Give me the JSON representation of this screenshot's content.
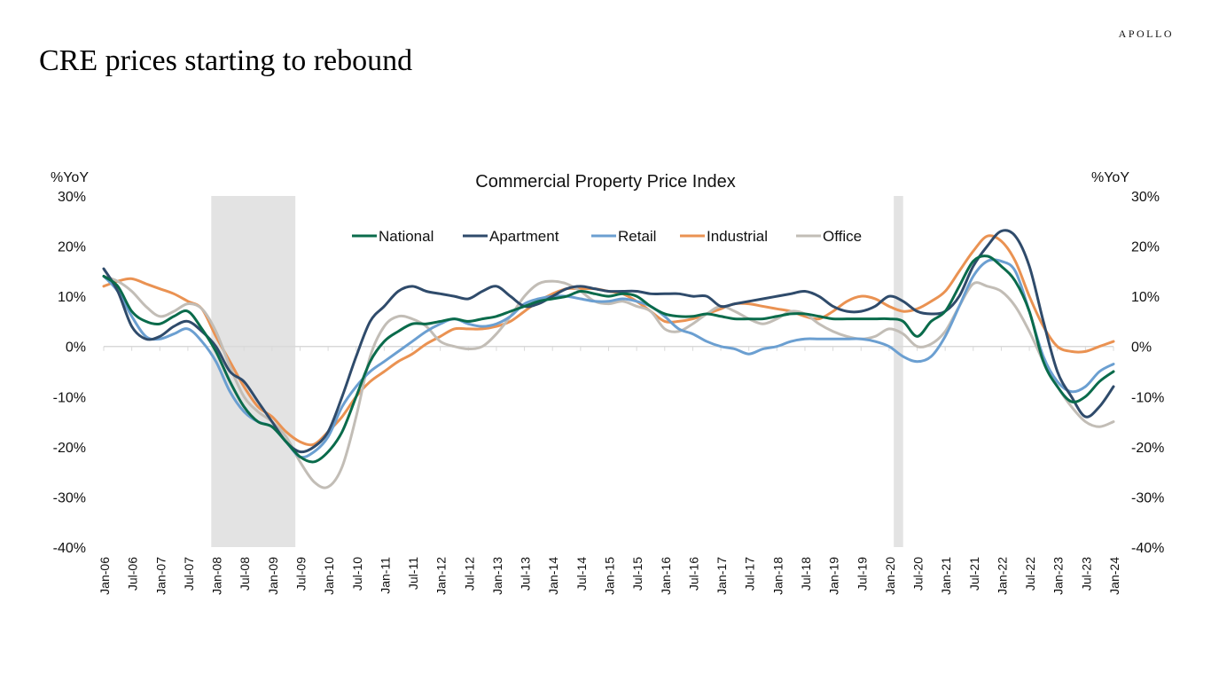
{
  "brand": "APOLLO",
  "page_title": "CRE prices starting to rebound",
  "colors": {
    "National": "#0a6b4b",
    "Apartment": "#2f4b6b",
    "Retail": "#6b9fd1",
    "Industrial": "#ea9252",
    "Office": "#c2bdb6",
    "recession": "#e3e3e3",
    "axis": "#d9d9d9"
  },
  "chart_data": {
    "type": "line",
    "title": "Commercial Property Price Index",
    "ylabel_left": "%YoY",
    "ylabel_right": "%YoY",
    "ylim": [
      -40,
      30
    ],
    "y_ticks": [
      -40,
      -30,
      -20,
      -10,
      0,
      10,
      20,
      30
    ],
    "y_tick_labels": [
      "-40%",
      "-30%",
      "-20%",
      "-10%",
      "0%",
      "10%",
      "20%",
      "30%"
    ],
    "x_start": "Jan-06",
    "x_end": "Jan-24",
    "x_tick_labels": [
      "Jan-06",
      "Jul-06",
      "Jan-07",
      "Jul-07",
      "Jan-08",
      "Jul-08",
      "Jan-09",
      "Jul-09",
      "Jan-10",
      "Jul-10",
      "Jan-11",
      "Jul-11",
      "Jan-12",
      "Jul-12",
      "Jan-13",
      "Jul-13",
      "Jan-14",
      "Jul-14",
      "Jan-15",
      "Jul-15",
      "Jan-16",
      "Jul-16",
      "Jan-17",
      "Jul-17",
      "Jan-18",
      "Jul-18",
      "Jan-19",
      "Jul-19",
      "Jan-20",
      "Jul-20",
      "Jan-21",
      "Jul-21",
      "Jan-22",
      "Jul-22",
      "Jan-23",
      "Jul-23",
      "Jan-24"
    ],
    "legend_position": "top-center",
    "grid": false,
    "recession_shading": [
      {
        "start": "Dec-07",
        "end": "Jun-09"
      },
      {
        "start": "Feb-20",
        "end": "Apr-20"
      }
    ],
    "series": [
      {
        "name": "National",
        "x": [
          "Jan-06",
          "Apr-06",
          "Jul-06",
          "Oct-06",
          "Jan-07",
          "Apr-07",
          "Jul-07",
          "Oct-07",
          "Jan-08",
          "Apr-08",
          "Jul-08",
          "Oct-08",
          "Jan-09",
          "Apr-09",
          "Jul-09",
          "Oct-09",
          "Jan-10",
          "Apr-10",
          "Jul-10",
          "Oct-10",
          "Jan-11",
          "Apr-11",
          "Jul-11",
          "Oct-11",
          "Jan-12",
          "Apr-12",
          "Jul-12",
          "Oct-12",
          "Jan-13",
          "Apr-13",
          "Jul-13",
          "Oct-13",
          "Jan-14",
          "Apr-14",
          "Jul-14",
          "Oct-14",
          "Jan-15",
          "Apr-15",
          "Jul-15",
          "Oct-15",
          "Jan-16",
          "Apr-16",
          "Jul-16",
          "Oct-16",
          "Jan-17",
          "Apr-17",
          "Jul-17",
          "Oct-17",
          "Jan-18",
          "Apr-18",
          "Jul-18",
          "Oct-18",
          "Jan-19",
          "Apr-19",
          "Jul-19",
          "Oct-19",
          "Jan-20",
          "Apr-20",
          "Jul-20",
          "Oct-20",
          "Jan-21",
          "Apr-21",
          "Jul-21",
          "Oct-21",
          "Jan-22",
          "Apr-22",
          "Jul-22",
          "Oct-22",
          "Jan-23",
          "Apr-23",
          "Jul-23",
          "Oct-23",
          "Jan-24"
        ],
        "values": [
          14,
          12,
          7,
          5,
          4.5,
          6,
          7,
          3.5,
          -1,
          -7,
          -12,
          -15,
          -16,
          -19,
          -22,
          -23,
          -21,
          -17,
          -10,
          -3,
          1,
          3,
          4.5,
          4.5,
          5,
          5.5,
          5,
          5.5,
          6,
          7,
          8,
          9,
          9.5,
          10,
          11,
          10.5,
          10,
          10.5,
          10,
          8,
          6.5,
          6,
          6,
          6.5,
          6,
          5.5,
          5.5,
          5.5,
          6,
          6.5,
          6.5,
          6,
          5.5,
          5.5,
          5.5,
          5.5,
          5.5,
          5,
          2,
          5,
          7,
          12,
          17,
          18,
          16,
          13,
          7,
          -3,
          -8,
          -11,
          -10,
          -7,
          -5
        ]
      },
      {
        "name": "Apartment",
        "x": [
          "Jan-06",
          "Apr-06",
          "Jul-06",
          "Oct-06",
          "Jan-07",
          "Apr-07",
          "Jul-07",
          "Oct-07",
          "Jan-08",
          "Apr-08",
          "Jul-08",
          "Oct-08",
          "Jan-09",
          "Apr-09",
          "Jul-09",
          "Oct-09",
          "Jan-10",
          "Apr-10",
          "Jul-10",
          "Oct-10",
          "Jan-11",
          "Apr-11",
          "Jul-11",
          "Oct-11",
          "Jan-12",
          "Apr-12",
          "Jul-12",
          "Oct-12",
          "Jan-13",
          "Apr-13",
          "Jul-13",
          "Oct-13",
          "Jan-14",
          "Apr-14",
          "Jul-14",
          "Oct-14",
          "Jan-15",
          "Apr-15",
          "Jul-15",
          "Oct-15",
          "Jan-16",
          "Apr-16",
          "Jul-16",
          "Oct-16",
          "Jan-17",
          "Apr-17",
          "Jul-17",
          "Oct-17",
          "Jan-18",
          "Apr-18",
          "Jul-18",
          "Oct-18",
          "Jan-19",
          "Apr-19",
          "Jul-19",
          "Oct-19",
          "Jan-20",
          "Apr-20",
          "Jul-20",
          "Oct-20",
          "Jan-21",
          "Apr-21",
          "Jul-21",
          "Oct-21",
          "Jan-22",
          "Apr-22",
          "Jul-22",
          "Oct-22",
          "Jan-23",
          "Apr-23",
          "Jul-23",
          "Oct-23",
          "Jan-24"
        ],
        "values": [
          15.5,
          11,
          4,
          1.5,
          2,
          4,
          5,
          3,
          0,
          -5,
          -7,
          -11,
          -15,
          -19,
          -21,
          -20,
          -17,
          -10,
          -2,
          5,
          8,
          11,
          12,
          11,
          10.5,
          10,
          9.5,
          11,
          12,
          10,
          8,
          8.5,
          10,
          11.5,
          12,
          11.5,
          11,
          11,
          11,
          10.5,
          10.5,
          10.5,
          10,
          10,
          8,
          8.5,
          9,
          9.5,
          10,
          10.5,
          11,
          10,
          8,
          7,
          7,
          8,
          10,
          9,
          7,
          6.5,
          7,
          10,
          16,
          20,
          23,
          22,
          16,
          5,
          -5,
          -10,
          -14,
          -12,
          -8
        ]
      },
      {
        "name": "Retail",
        "x": [
          "Jan-06",
          "Apr-06",
          "Jul-06",
          "Oct-06",
          "Jan-07",
          "Apr-07",
          "Jul-07",
          "Oct-07",
          "Jan-08",
          "Apr-08",
          "Jul-08",
          "Oct-08",
          "Jan-09",
          "Apr-09",
          "Jul-09",
          "Oct-09",
          "Jan-10",
          "Apr-10",
          "Jul-10",
          "Oct-10",
          "Jan-11",
          "Apr-11",
          "Jul-11",
          "Oct-11",
          "Jan-12",
          "Apr-12",
          "Jul-12",
          "Oct-12",
          "Jan-13",
          "Apr-13",
          "Jul-13",
          "Oct-13",
          "Jan-14",
          "Apr-14",
          "Jul-14",
          "Oct-14",
          "Jan-15",
          "Apr-15",
          "Jul-15",
          "Oct-15",
          "Jan-16",
          "Apr-16",
          "Jul-16",
          "Oct-16",
          "Jan-17",
          "Apr-17",
          "Jul-17",
          "Oct-17",
          "Jan-18",
          "Apr-18",
          "Jul-18",
          "Oct-18",
          "Jan-19",
          "Apr-19",
          "Jul-19",
          "Oct-19",
          "Jan-20",
          "Apr-20",
          "Jul-20",
          "Oct-20",
          "Jan-21",
          "Apr-21",
          "Jul-21",
          "Oct-21",
          "Jan-22",
          "Apr-22",
          "Jul-22",
          "Oct-22",
          "Jan-23",
          "Apr-23",
          "Jul-23",
          "Oct-23",
          "Jan-24"
        ],
        "values": [
          14,
          11,
          6,
          2,
          1.5,
          2.5,
          3.5,
          1,
          -3,
          -9,
          -13,
          -15,
          -16,
          -19,
          -22,
          -21,
          -18,
          -12,
          -8,
          -5,
          -3,
          -1,
          1,
          3,
          4.5,
          5.5,
          4.5,
          4,
          4.5,
          6,
          8.5,
          9.5,
          10,
          10,
          9.5,
          9,
          9,
          9.5,
          9,
          8,
          6,
          3.5,
          2.5,
          1,
          0,
          -0.5,
          -1.5,
          -0.5,
          0,
          1,
          1.5,
          1.5,
          1.5,
          1.5,
          1.5,
          1,
          0,
          -2,
          -3,
          -2,
          2,
          8,
          14,
          17,
          17,
          15,
          7,
          -2,
          -7,
          -9,
          -8,
          -5,
          -3.5
        ]
      },
      {
        "name": "Industrial",
        "x": [
          "Jan-06",
          "Apr-06",
          "Jul-06",
          "Oct-06",
          "Jan-07",
          "Apr-07",
          "Jul-07",
          "Oct-07",
          "Jan-08",
          "Apr-08",
          "Jul-08",
          "Oct-08",
          "Jan-09",
          "Apr-09",
          "Jul-09",
          "Oct-09",
          "Jan-10",
          "Apr-10",
          "Jul-10",
          "Oct-10",
          "Jan-11",
          "Apr-11",
          "Jul-11",
          "Oct-11",
          "Jan-12",
          "Apr-12",
          "Jul-12",
          "Oct-12",
          "Jan-13",
          "Apr-13",
          "Jul-13",
          "Oct-13",
          "Jan-14",
          "Apr-14",
          "Jul-14",
          "Oct-14",
          "Jan-15",
          "Apr-15",
          "Jul-15",
          "Oct-15",
          "Jan-16",
          "Apr-16",
          "Jul-16",
          "Oct-16",
          "Jan-17",
          "Apr-17",
          "Jul-17",
          "Oct-17",
          "Jan-18",
          "Apr-18",
          "Jul-18",
          "Oct-18",
          "Jan-19",
          "Apr-19",
          "Jul-19",
          "Oct-19",
          "Jan-20",
          "Apr-20",
          "Jul-20",
          "Oct-20",
          "Jan-21",
          "Apr-21",
          "Jul-21",
          "Oct-21",
          "Jan-22",
          "Apr-22",
          "Jul-22",
          "Oct-22",
          "Jan-23",
          "Apr-23",
          "Jul-23",
          "Oct-23",
          "Jan-24"
        ],
        "values": [
          12,
          13,
          13.5,
          12.5,
          11.5,
          10.5,
          9,
          7.5,
          2,
          -3,
          -8,
          -12,
          -14,
          -17,
          -19,
          -19.5,
          -17,
          -14,
          -10,
          -7,
          -5,
          -3,
          -1.5,
          0.5,
          2,
          3.5,
          3.5,
          3.5,
          4,
          5,
          7,
          9,
          10.5,
          11.5,
          11.5,
          11.5,
          11,
          10.5,
          9,
          7,
          5,
          5,
          5.5,
          6.5,
          7.5,
          8.5,
          8.5,
          8,
          7.5,
          7,
          6,
          5.5,
          7,
          9,
          10,
          9.5,
          8,
          7,
          7.5,
          9,
          11,
          15,
          19,
          22,
          21,
          17,
          10,
          4,
          0,
          -1,
          -1,
          0,
          1
        ]
      },
      {
        "name": "Office",
        "x": [
          "Jan-06",
          "Apr-06",
          "Jul-06",
          "Oct-06",
          "Jan-07",
          "Apr-07",
          "Jul-07",
          "Oct-07",
          "Jan-08",
          "Apr-08",
          "Jul-08",
          "Oct-08",
          "Jan-09",
          "Apr-09",
          "Jul-09",
          "Oct-09",
          "Jan-10",
          "Apr-10",
          "Jul-10",
          "Oct-10",
          "Jan-11",
          "Apr-11",
          "Jul-11",
          "Oct-11",
          "Jan-12",
          "Apr-12",
          "Jul-12",
          "Oct-12",
          "Jan-13",
          "Apr-13",
          "Jul-13",
          "Oct-13",
          "Jan-14",
          "Apr-14",
          "Jul-14",
          "Oct-14",
          "Jan-15",
          "Apr-15",
          "Jul-15",
          "Oct-15",
          "Jan-16",
          "Apr-16",
          "Jul-16",
          "Oct-16",
          "Jan-17",
          "Apr-17",
          "Jul-17",
          "Oct-17",
          "Jan-18",
          "Apr-18",
          "Jul-18",
          "Oct-18",
          "Jan-19",
          "Apr-19",
          "Jul-19",
          "Oct-19",
          "Jan-20",
          "Apr-20",
          "Jul-20",
          "Oct-20",
          "Jan-21",
          "Apr-21",
          "Jul-21",
          "Oct-21",
          "Jan-22",
          "Apr-22",
          "Jul-22",
          "Oct-22",
          "Jan-23",
          "Apr-23",
          "Jul-23",
          "Oct-23",
          "Jan-24"
        ],
        "values": [
          14,
          13,
          11,
          8,
          6,
          7,
          8.5,
          7.5,
          3,
          -4,
          -10,
          -13,
          -15,
          -18,
          -23,
          -27,
          -28,
          -24,
          -14,
          -2,
          4,
          6,
          5.5,
          4,
          1,
          0,
          -0.5,
          0,
          2.5,
          6,
          10,
          12.5,
          13,
          12.5,
          11,
          9,
          8.5,
          9,
          8,
          7,
          3.5,
          3,
          4.5,
          6.5,
          8,
          7,
          5.5,
          4.5,
          5.5,
          7,
          6.5,
          4.5,
          3,
          2,
          1.5,
          2,
          3.5,
          2.5,
          0,
          0.5,
          3,
          8,
          12.5,
          12,
          11,
          8,
          3,
          -3,
          -8,
          -12,
          -15,
          -16,
          -15
        ]
      }
    ]
  }
}
